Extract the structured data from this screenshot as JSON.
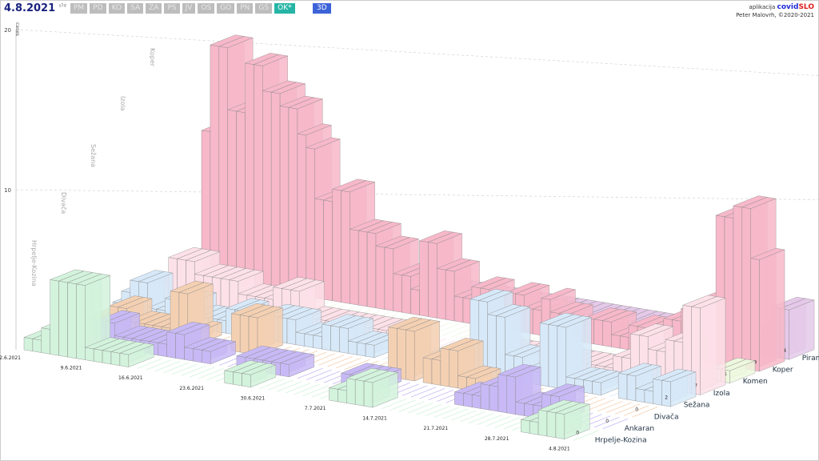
{
  "header": {
    "date": "4.8.2021",
    "date_sup": "s7d",
    "tabs": [
      "PM",
      "PD",
      "KO",
      "SA",
      "ZA",
      "PS",
      "JV",
      "OS",
      "GO",
      "PN",
      "GŠ",
      "OK*"
    ],
    "active_tab": "OK*",
    "view_button": "3D"
  },
  "credit": {
    "line1_prefix": "aplikacija",
    "brand_a": "covid",
    "brand_b": "SLO",
    "line2": "Peter Malovrh, ©2020-2021"
  },
  "chart_data": {
    "type": "bar3d",
    "ylabel": "cases",
    "yticks": [
      10,
      20
    ],
    "ylim": [
      0,
      20
    ],
    "date_labels": [
      "2.6.2021",
      "9.6.2021",
      "16.6.2021",
      "23.6.2021",
      "30.6.2021",
      "7.7.2021",
      "14.7.2021",
      "21.7.2021",
      "28.7.2021",
      "4.8.2021"
    ],
    "series": [
      {
        "name": "Hrpelje-Kozina",
        "color": "#d3f3dc",
        "last": "0",
        "values": [
          1,
          1,
          2,
          6,
          6,
          6,
          6,
          1,
          1,
          1,
          1,
          1,
          0,
          0,
          0,
          0,
          0,
          0,
          0,
          0,
          0,
          0,
          0,
          1,
          1,
          1,
          0,
          0,
          0,
          0,
          0,
          0,
          0,
          0,
          0,
          1,
          1,
          2,
          2,
          2,
          0,
          0,
          0,
          0,
          0,
          0,
          0,
          0,
          0,
          0,
          0,
          0,
          0,
          0,
          0,
          0,
          0,
          1,
          1,
          2,
          2,
          2,
          0,
          0
        ]
      },
      {
        "name": "Ankaran",
        "color": "#c8b9f6",
        "last": "0",
        "values": [
          0,
          1,
          1,
          1,
          1,
          2,
          2,
          1,
          1,
          1,
          1,
          1,
          1,
          2,
          2,
          1,
          1,
          1,
          0,
          0,
          0,
          1,
          1,
          1,
          1,
          1,
          1,
          0,
          0,
          0,
          0,
          0,
          0,
          1,
          1,
          1,
          1,
          0,
          0,
          0,
          0,
          0,
          0,
          0,
          0,
          0,
          1,
          1,
          1,
          2,
          2,
          3,
          3,
          1,
          1,
          1,
          2,
          2,
          0,
          0,
          0,
          0,
          0,
          0
        ]
      },
      {
        "name": "Divača",
        "color": "#f4d0b2",
        "last": "0",
        "values": [
          0,
          1,
          1,
          2,
          2,
          1,
          1,
          1,
          1,
          1,
          4,
          4,
          1,
          0,
          0,
          0,
          0,
          3,
          3,
          3,
          0,
          0,
          0,
          0,
          0,
          0,
          0,
          0,
          0,
          0,
          0,
          0,
          0,
          0,
          0,
          4,
          4,
          4,
          0,
          2,
          2,
          3,
          3,
          1,
          1,
          0,
          0,
          0,
          0,
          0,
          0,
          0,
          0,
          0,
          0,
          0,
          0,
          0,
          0,
          0,
          0,
          0,
          0,
          0
        ]
      },
      {
        "name": "Sežana",
        "color": "#d7e9f9",
        "last": "2",
        "values": [
          1,
          2,
          3,
          3,
          1,
          1,
          2,
          2,
          2,
          1,
          1,
          1,
          1,
          2,
          2,
          1,
          1,
          2,
          2,
          2,
          2,
          1,
          1,
          1,
          2,
          2,
          2,
          1,
          1,
          1,
          0,
          0,
          0,
          0,
          0,
          0,
          1,
          1,
          1,
          2,
          2,
          6,
          6,
          5,
          5,
          2,
          2,
          1,
          1,
          5,
          5,
          5,
          1,
          1,
          1,
          1,
          0,
          0,
          2,
          2,
          1,
          1,
          2,
          2
        ]
      },
      {
        "name": "Izola",
        "color": "#fde1e9",
        "last": "7",
        "values": [
          1,
          2,
          2,
          4,
          4,
          4,
          3,
          3,
          3,
          3,
          3,
          2,
          2,
          2,
          2,
          3,
          3,
          3,
          1,
          1,
          1,
          1,
          1,
          1,
          1,
          1,
          1,
          1,
          0,
          0,
          0,
          0,
          0,
          0,
          0,
          0,
          0,
          1,
          1,
          1,
          1,
          1,
          1,
          0,
          0,
          1,
          1,
          1,
          1,
          1,
          1,
          1,
          1,
          1,
          2,
          2,
          4,
          4,
          3,
          3,
          4,
          4,
          7,
          7
        ]
      },
      {
        "name": "Komen",
        "color": "#eef8df",
        "last": "1",
        "values": [
          0,
          0,
          0,
          0,
          0,
          0,
          0,
          0,
          0,
          0,
          0,
          0,
          0,
          0,
          0,
          0,
          0,
          0,
          0,
          0,
          0,
          0,
          0,
          0,
          0,
          0,
          0,
          0,
          0,
          0,
          0,
          0,
          0,
          0,
          0,
          0,
          0,
          0,
          0,
          0,
          0,
          0,
          0,
          0,
          0,
          0,
          0,
          0,
          0,
          0,
          0,
          0,
          0,
          0,
          0,
          0,
          0,
          0,
          0,
          0,
          0,
          0,
          1,
          1
        ]
      },
      {
        "name": "Koper",
        "color": "#f7b8c9",
        "last": "9",
        "values": [
          12,
          19,
          19,
          14,
          14,
          18,
          18,
          16,
          16,
          15,
          15,
          13,
          12,
          8,
          8,
          9,
          9,
          6,
          6,
          6,
          5,
          5,
          3,
          3,
          2,
          6,
          6,
          4,
          4,
          2,
          2,
          3,
          3,
          2,
          2,
          3,
          3,
          2,
          2,
          3,
          2,
          2,
          1,
          1,
          2,
          2,
          2,
          1,
          1,
          2,
          2,
          2,
          2,
          3,
          3,
          4,
          4,
          5,
          5,
          12,
          12,
          13,
          13,
          9
        ]
      },
      {
        "name": "Piran",
        "color": "#e5c9e9",
        "last": "4",
        "values": [
          0,
          0,
          0,
          0,
          0,
          0,
          0,
          0,
          1,
          1,
          1,
          1,
          1,
          0,
          0,
          0,
          0,
          0,
          1,
          1,
          1,
          1,
          1,
          1,
          1,
          1,
          1,
          1,
          1,
          1,
          1,
          1,
          1,
          1,
          1,
          1,
          1,
          1,
          1,
          1,
          1,
          1,
          1,
          1,
          1,
          1,
          1,
          1,
          1,
          1,
          1,
          1,
          1,
          1,
          1,
          1,
          1,
          1,
          1,
          1,
          2,
          2,
          4,
          4
        ]
      }
    ],
    "back_wall_labels": [
      "Hrpelje-Kozina",
      "Divača",
      "Sežana",
      "Izola",
      "Koper"
    ]
  }
}
